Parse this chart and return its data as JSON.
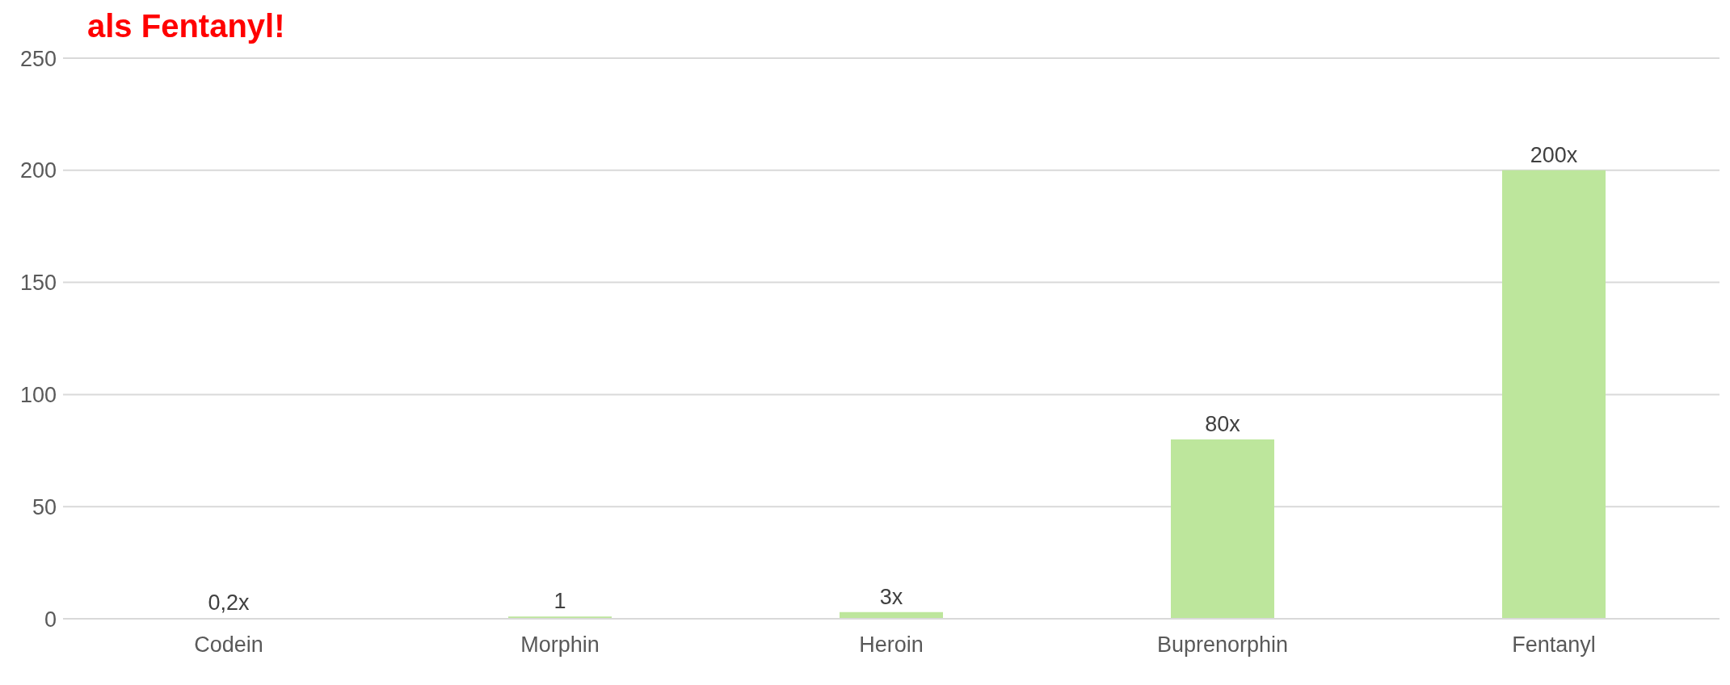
{
  "chart_data": {
    "type": "bar",
    "title": "als Fentanyl!",
    "categories": [
      "Codein",
      "Morphin",
      "Heroin",
      "Buprenorphin",
      "Fentanyl"
    ],
    "values": [
      0.2,
      1,
      3,
      80,
      200
    ],
    "value_labels": [
      "0,2x",
      "1",
      "3x",
      "80x",
      "200x"
    ],
    "color": "#bde69c",
    "ylim": [
      0,
      250
    ],
    "yticks": [
      0,
      50,
      100,
      150,
      200,
      250
    ],
    "grid": "y"
  }
}
